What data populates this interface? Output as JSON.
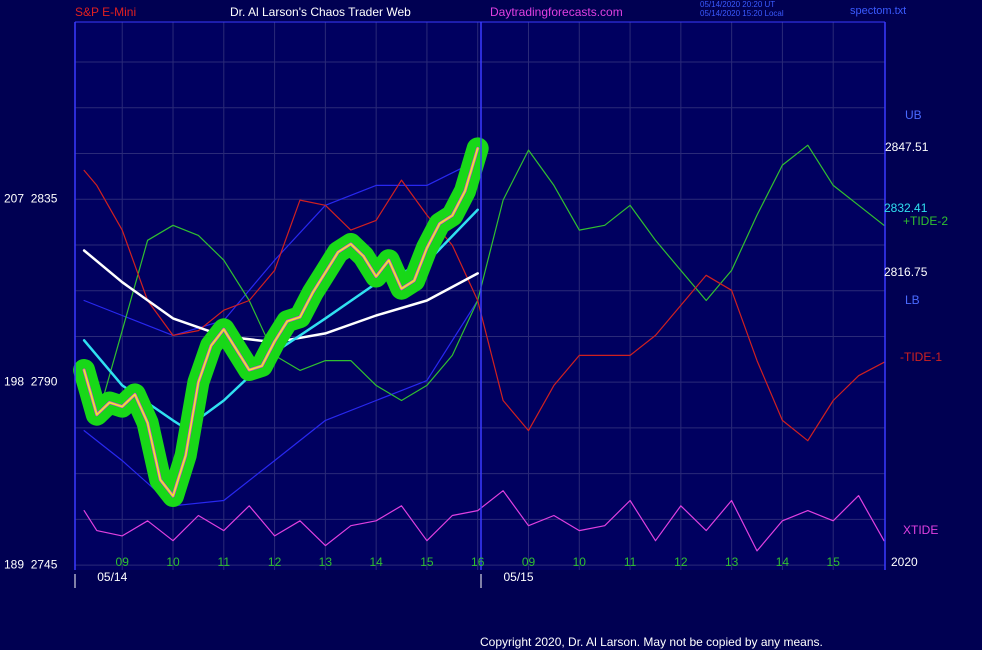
{
  "chart_data": {
    "type": "line",
    "title": "Dr. Al Larson's Chaos Trader Web",
    "symbol": "S&P E-Mini",
    "site": "Daytradingforecasts.com",
    "timestamps": [
      "05/14/2020 20:20 UT",
      "05/14/2020 15:20 Local"
    ],
    "file": "spectom.txt",
    "copyright": "Copyright 2020, Dr. Al Larson. May not be copied by any means.",
    "year_label": "2020",
    "dates": [
      "05/14",
      "05/15"
    ],
    "xlim": [
      8.07,
      24.02
    ],
    "xticks": [
      {
        "value": 9,
        "label": "09"
      },
      10,
      11,
      12,
      13,
      14,
      15,
      16,
      {
        "value": 17,
        "label": "09"
      },
      {
        "value": 18,
        "label": "10"
      },
      {
        "value": 19,
        "label": "11"
      },
      {
        "value": 20,
        "label": "12"
      },
      {
        "value": 21,
        "label": "13"
      },
      {
        "value": 22,
        "label": "14"
      },
      {
        "value": 23,
        "label": "15"
      }
    ],
    "ylim": [
      2743.8,
      2878.6
    ],
    "yticks": [
      {
        "value": 2835,
        "label": "207  2835"
      },
      {
        "value": 2790,
        "label": "198  2790"
      },
      {
        "value": 2745,
        "label": "189  2745"
      }
    ],
    "yticks_minor": [
      2868.75,
      2857.5,
      2846.25,
      2823.75,
      2812.5,
      2801.25,
      2778.75,
      2767.5,
      2756.25
    ],
    "grid": true,
    "series": [
      {
        "name": "UB",
        "color": "#2828f0",
        "x": [
          8.25,
          9,
          10,
          11,
          12,
          13,
          14,
          15,
          16
        ],
        "values": [
          2810.1,
          2806.4,
          2801.5,
          2805.2,
          2820.0,
          2833.5,
          2838.4,
          2838.4,
          2844.6
        ]
      },
      {
        "name": "LB",
        "color": "#2828f0",
        "x": [
          8.25,
          9,
          10,
          11,
          12,
          13,
          14,
          15,
          16
        ],
        "values": [
          2778.1,
          2770.7,
          2759.6,
          2760.9,
          2770.7,
          2780.6,
          2785.5,
          2790.4,
          2810.1
        ]
      },
      {
        "name": "+TIDE-2",
        "color": "#30c030",
        "x": [
          8.5,
          9,
          9.5,
          10,
          10.5,
          11,
          11.5,
          12,
          12.5,
          13,
          13.5,
          14,
          14.5,
          15,
          15.5,
          16,
          16.5,
          17,
          17.5,
          18,
          18.5,
          19,
          19.5,
          20,
          20.5,
          21,
          21.5,
          22,
          22.5,
          23,
          23.5,
          24
        ],
        "values": [
          2780.6,
          2802.7,
          2824.9,
          2828.6,
          2826.1,
          2820.0,
          2810.1,
          2796.6,
          2792.9,
          2795.3,
          2795.3,
          2789.2,
          2785.5,
          2789.2,
          2796.6,
          2810.1,
          2834.8,
          2847.1,
          2838.4,
          2827.4,
          2828.6,
          2833.5,
          2824.9,
          2817.5,
          2810.1,
          2817.5,
          2831.1,
          2843.4,
          2848.3,
          2838.4,
          2833.5,
          2828.6
        ]
      },
      {
        "name": "-TIDE-1",
        "color": "#d02020",
        "x": [
          8.25,
          8.5,
          9,
          9.5,
          10,
          10.5,
          11,
          11.5,
          12,
          12.5,
          13,
          13.5,
          14,
          14.5,
          15,
          15.5,
          16,
          16.5,
          17,
          17.5,
          18,
          18.5,
          19,
          19.5,
          20,
          20.5,
          21,
          21.5,
          22,
          22.5,
          23,
          23.5,
          24
        ],
        "values": [
          2842.1,
          2838.4,
          2827.4,
          2810.1,
          2801.5,
          2802.7,
          2807.7,
          2810.1,
          2817.5,
          2834.8,
          2833.5,
          2827.4,
          2829.8,
          2839.7,
          2831.1,
          2823.7,
          2810.1,
          2785.5,
          2778.1,
          2789.2,
          2796.6,
          2796.6,
          2796.6,
          2801.5,
          2808.9,
          2816.3,
          2812.6,
          2795.3,
          2780.6,
          2775.6,
          2785.5,
          2791.6,
          2794.9
        ]
      },
      {
        "name": "XTIDE",
        "color": "#e040e0",
        "x": [
          8.25,
          8.5,
          9,
          9.5,
          10,
          10.5,
          11,
          11.5,
          12,
          12.5,
          13,
          13.5,
          14,
          14.5,
          15,
          15.5,
          16,
          16.5,
          17,
          17.5,
          18,
          18.5,
          19,
          19.5,
          20,
          20.5,
          21,
          21.5,
          22,
          22.5,
          23,
          23.5,
          24
        ],
        "values": [
          2758.4,
          2753.5,
          2752.2,
          2755.9,
          2751.0,
          2757.2,
          2753.5,
          2759.6,
          2752.2,
          2755.9,
          2749.8,
          2754.7,
          2755.9,
          2759.6,
          2751.0,
          2757.2,
          2758.4,
          2763.3,
          2754.7,
          2757.2,
          2753.5,
          2754.7,
          2760.9,
          2751.0,
          2759.6,
          2753.5,
          2760.9,
          2748.5,
          2755.9,
          2758.4,
          2755.9,
          2762.1,
          2751.0
        ]
      },
      {
        "color": "#ffffff",
        "x": [
          8.25,
          9,
          10,
          11,
          12,
          13,
          14,
          15,
          16
        ],
        "values": [
          2822.4,
          2814.6,
          2805.7,
          2801.3,
          2799.8,
          2802.0,
          2806.4,
          2810.1,
          2816.75
        ]
      },
      {
        "color": "#30e0f0",
        "x": [
          8.25,
          9,
          10,
          10.25,
          11,
          12,
          13,
          14,
          15,
          16
        ],
        "values": [
          2800.3,
          2789.2,
          2780.6,
          2778.6,
          2785.5,
          2797.3,
          2805.7,
          2814.3,
          2819.5,
          2832.41
        ]
      },
      {
        "color": "#f0f020",
        "highlight": "#18d818",
        "x": [
          8.25,
          8.5,
          8.75,
          9,
          9.25,
          9.5,
          9.75,
          10,
          10.25,
          10.5,
          10.75,
          11,
          11.25,
          11.5,
          11.75,
          12,
          12.25,
          12.5,
          12.75,
          13,
          13.25,
          13.5,
          13.75,
          14,
          14.25,
          14.5,
          14.75,
          15,
          15.25,
          15.5,
          15.75,
          16
        ],
        "values": [
          2793,
          2782,
          2785,
          2784,
          2787,
          2780,
          2766,
          2762,
          2772,
          2790,
          2799,
          2803,
          2798,
          2793,
          2794,
          2800,
          2805,
          2806,
          2812,
          2817,
          2822,
          2824,
          2821,
          2816,
          2820,
          2813,
          2815,
          2823,
          2829,
          2831,
          2837,
          2847.51
        ]
      }
    ]
  }
}
